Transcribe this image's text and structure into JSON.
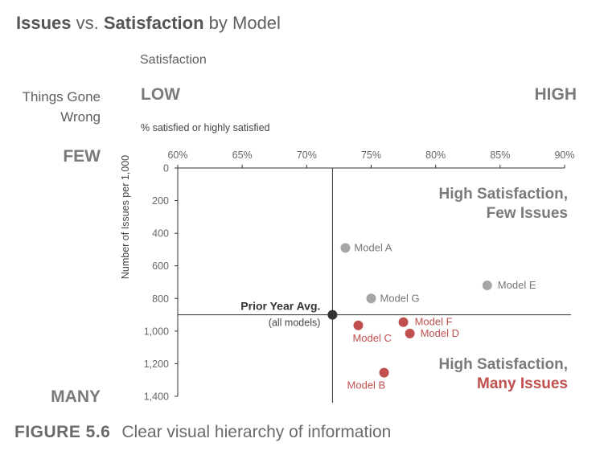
{
  "title": {
    "part1": "Issues",
    "part2": " vs. ",
    "part3": "Satisfaction",
    "part4": " by Model"
  },
  "top_labels": {
    "satisfaction": "Satisfaction",
    "things_gone_wrong_line1": "Things Gone",
    "things_gone_wrong_line2": "Wrong",
    "low": "LOW",
    "high": "HIGH",
    "pct_note": "% satisfied or highly satisfied",
    "few": "FEW",
    "many": "MANY"
  },
  "caption": {
    "figure": "FIGURE 5.6",
    "text": "Clear visual hierarchy of information"
  },
  "colors": {
    "gray_point": "#a6a6a6",
    "red_point": "#c0504d",
    "avg_point": "#333333",
    "axis": "#333333",
    "text": "#5f5f5f"
  },
  "chart_data": {
    "type": "scatter",
    "ylabel": "Number of Issues per 1,000",
    "xlim": [
      60,
      90
    ],
    "ylim": [
      0,
      1400
    ],
    "y_inverted": true,
    "x_ticks": [
      "60%",
      "65%",
      "70%",
      "75%",
      "80%",
      "85%",
      "90%"
    ],
    "y_ticks": [
      "0",
      "200",
      "400",
      "600",
      "800",
      "1,000",
      "1,200",
      "1,400"
    ],
    "x_tick_values": [
      60,
      65,
      70,
      75,
      80,
      85,
      90
    ],
    "y_tick_values": [
      0,
      200,
      400,
      600,
      800,
      1000,
      1200,
      1400
    ],
    "reference": {
      "label": "Prior Year Avg.",
      "sublabel": "(all models)",
      "x": 72,
      "y": 900
    },
    "points": [
      {
        "name": "Model A",
        "x": 73,
        "y": 490,
        "color": "gray"
      },
      {
        "name": "Model E",
        "x": 84,
        "y": 720,
        "color": "gray"
      },
      {
        "name": "Model G",
        "x": 75,
        "y": 800,
        "color": "gray"
      },
      {
        "name": "Model F",
        "x": 77.5,
        "y": 945,
        "color": "red"
      },
      {
        "name": "Model C",
        "x": 74,
        "y": 965,
        "color": "red"
      },
      {
        "name": "Model D",
        "x": 78,
        "y": 1015,
        "color": "red"
      },
      {
        "name": "Model B",
        "x": 76,
        "y": 1255,
        "color": "red"
      }
    ],
    "annotations": {
      "top_line1": "High Satisfaction,",
      "top_line2": "Few Issues",
      "bottom_line1": "High Satisfaction,",
      "bottom_line2": "Many Issues"
    }
  }
}
